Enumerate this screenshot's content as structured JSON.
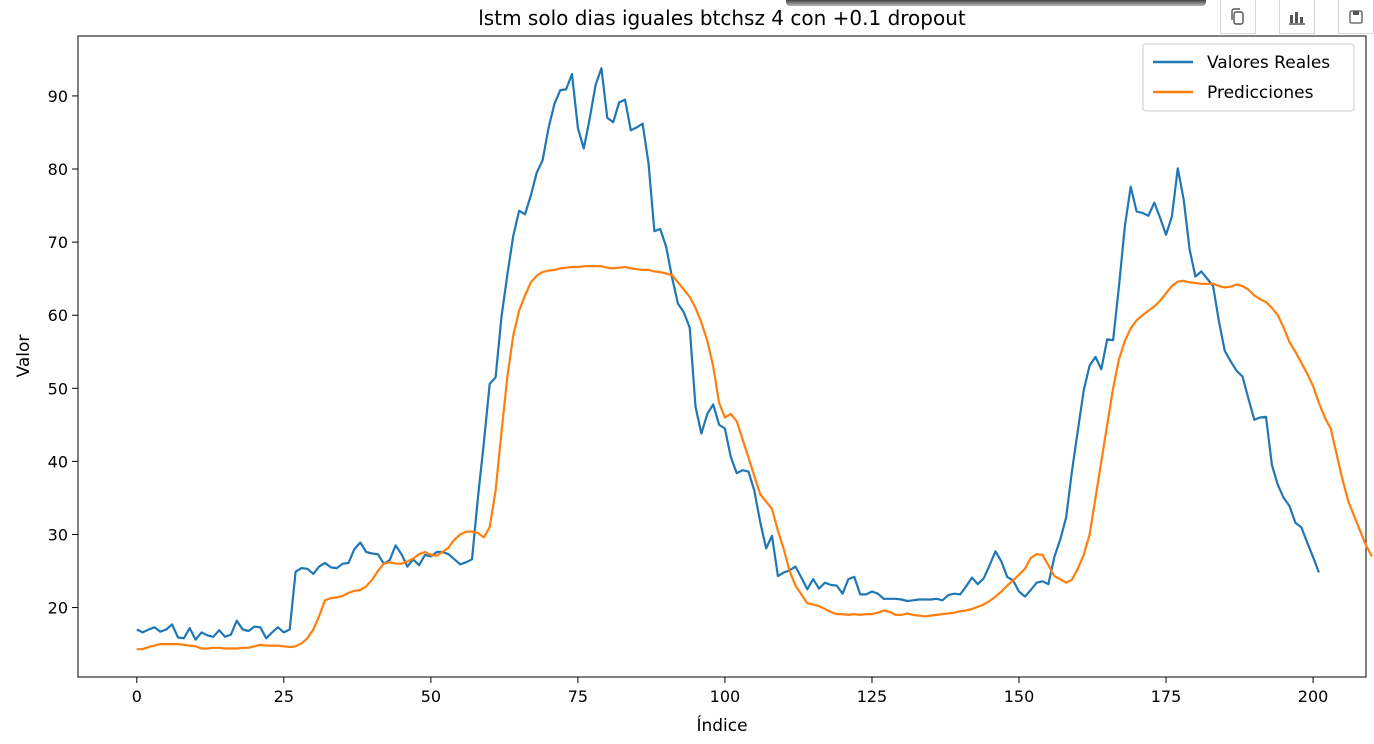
{
  "chart_data": {
    "type": "line",
    "title": "lstm solo dias iguales btchsz 4 con +0.1 dropout",
    "xlabel": "Índice",
    "ylabel": "Valor",
    "xlim": [
      -10,
      209
    ],
    "ylim": [
      10.5,
      98.2
    ],
    "xticks": [
      0,
      25,
      50,
      75,
      100,
      125,
      150,
      175,
      200
    ],
    "yticks": [
      20,
      30,
      40,
      50,
      60,
      70,
      80,
      90
    ],
    "grid": false,
    "legend_position": "top-right",
    "series": [
      {
        "name": "Valores Reales",
        "color": "#1f77b4",
        "values": [
          17.0,
          16.6,
          17.0,
          17.3,
          16.7,
          17.0,
          17.7,
          15.9,
          15.8,
          17.2,
          15.6,
          16.6,
          16.2,
          16.0,
          16.9,
          16.0,
          16.3,
          18.2,
          17.0,
          16.8,
          17.4,
          17.3,
          15.8,
          16.6,
          17.3,
          16.6,
          17.0,
          24.9,
          25.4,
          25.3,
          24.6,
          25.6,
          26.1,
          25.5,
          25.4,
          26.0,
          26.1,
          28.0,
          28.9,
          27.6,
          27.4,
          27.3,
          26.0,
          26.5,
          28.5,
          27.3,
          25.6,
          26.6,
          25.8,
          27.2,
          27.0,
          27.6,
          27.6,
          27.3,
          26.6,
          25.9,
          26.2,
          26.6,
          35.0,
          42.5,
          50.6,
          51.5,
          59.8,
          65.5,
          70.8,
          74.3,
          73.8,
          76.4,
          79.5,
          81.2,
          85.6,
          88.9,
          90.8,
          90.9,
          93.0,
          85.6,
          82.8,
          86.9,
          91.5,
          93.8,
          87.0,
          86.4,
          89.1,
          89.5,
          85.3,
          85.7,
          86.2,
          80.8,
          71.5,
          71.8,
          69.4,
          65.2,
          61.6,
          60.4,
          58.3,
          47.5,
          43.8,
          46.5,
          47.8,
          45.0,
          44.5,
          40.6,
          38.4,
          38.8,
          38.6,
          36.0,
          31.7,
          28.1,
          29.8,
          24.3,
          24.8,
          25.1,
          25.6,
          24.1,
          22.5,
          23.9,
          22.6,
          23.4,
          23.1,
          23.0,
          21.9,
          23.9,
          24.2,
          21.8,
          21.8,
          22.2,
          21.9,
          21.2,
          21.2,
          21.2,
          21.1,
          20.9,
          21.0,
          21.1,
          21.1,
          21.1,
          21.2,
          21.0,
          21.7,
          21.9,
          21.8,
          22.9,
          24.1,
          23.2,
          24.0,
          25.8,
          27.7,
          26.3,
          24.2,
          23.7,
          22.2,
          21.5,
          22.4,
          23.4,
          23.6,
          23.2,
          26.9,
          29.3,
          32.3,
          38.6,
          44.2,
          49.7,
          53.1,
          54.3,
          52.6,
          56.7,
          56.6,
          64.0,
          72.2,
          77.6,
          74.2,
          74.0,
          73.6,
          75.4,
          73.3,
          71.0,
          73.5,
          80.1,
          75.8,
          69.0,
          65.3,
          66.0,
          65.0,
          64.0,
          59.1,
          55.1,
          53.7,
          52.4,
          51.6,
          48.6,
          45.7,
          46.0,
          46.1,
          39.5,
          36.8,
          35.0,
          33.9,
          31.6,
          31.0,
          28.9,
          26.9,
          24.8
        ]
      },
      {
        "name": "Predicciones",
        "color": "#ff7f0e",
        "values": [
          14.3,
          14.3,
          14.6,
          14.8,
          15.0,
          15.0,
          15.0,
          15.0,
          14.9,
          14.8,
          14.7,
          14.4,
          14.4,
          14.5,
          14.5,
          14.4,
          14.4,
          14.4,
          14.5,
          14.5,
          14.7,
          14.9,
          14.8,
          14.8,
          14.8,
          14.7,
          14.6,
          14.7,
          15.1,
          15.8,
          17.0,
          18.8,
          21.0,
          21.3,
          21.4,
          21.6,
          22.0,
          22.3,
          22.4,
          22.9,
          23.8,
          25.0,
          26.0,
          26.2,
          26.0,
          26.0,
          26.3,
          26.7,
          27.3,
          27.6,
          27.2,
          27.1,
          27.6,
          28.2,
          29.3,
          30.0,
          30.4,
          30.4,
          30.2,
          29.6,
          31.0,
          36.0,
          44.0,
          51.5,
          57.2,
          60.6,
          62.7,
          64.5,
          65.4,
          65.9,
          66.1,
          66.2,
          66.4,
          66.5,
          66.6,
          66.6,
          66.7,
          66.7,
          66.7,
          66.7,
          66.5,
          66.4,
          66.5,
          66.6,
          66.4,
          66.3,
          66.2,
          66.2,
          66.0,
          65.9,
          65.7,
          65.5,
          64.5,
          63.5,
          62.5,
          61.0,
          59.0,
          56.5,
          53.0,
          48.0,
          46.0,
          46.5,
          45.5,
          43.0,
          40.5,
          38.0,
          35.5,
          34.5,
          33.5,
          30.5,
          28.0,
          25.0,
          23.0,
          21.8,
          20.6,
          20.4,
          20.2,
          19.8,
          19.4,
          19.1,
          19.1,
          19.0,
          19.1,
          19.0,
          19.1,
          19.1,
          19.3,
          19.6,
          19.4,
          19.0,
          19.0,
          19.2,
          19.0,
          18.9,
          18.8,
          18.9,
          19.0,
          19.1,
          19.2,
          19.3,
          19.5,
          19.6,
          19.8,
          20.1,
          20.4,
          20.9,
          21.5,
          22.2,
          23.0,
          23.7,
          24.5,
          25.3,
          26.8,
          27.3,
          27.2,
          25.8,
          24.3,
          23.9,
          23.4,
          23.8,
          25.3,
          27.2,
          30.0,
          35.0,
          40.0,
          45.0,
          50.0,
          54.0,
          56.5,
          58.2,
          59.3,
          60.0,
          60.6,
          61.2,
          62.0,
          63.0,
          64.0,
          64.6,
          64.7,
          64.5,
          64.4,
          64.3,
          64.3,
          64.3,
          64.0,
          63.8,
          63.9,
          64.2,
          64.0,
          63.5,
          62.7,
          62.2,
          61.8,
          61.0,
          60.0,
          58.3,
          56.3,
          55.0,
          53.5,
          52.0,
          50.3,
          48.0,
          46.0,
          44.5,
          41.0,
          37.5,
          34.5,
          32.5,
          30.5,
          28.5,
          27.0
        ]
      }
    ]
  },
  "toolbar": {
    "copy_icon": "copy-icon",
    "chart_icon": "bar-chart-icon",
    "save_icon": "floppy-save-icon"
  }
}
